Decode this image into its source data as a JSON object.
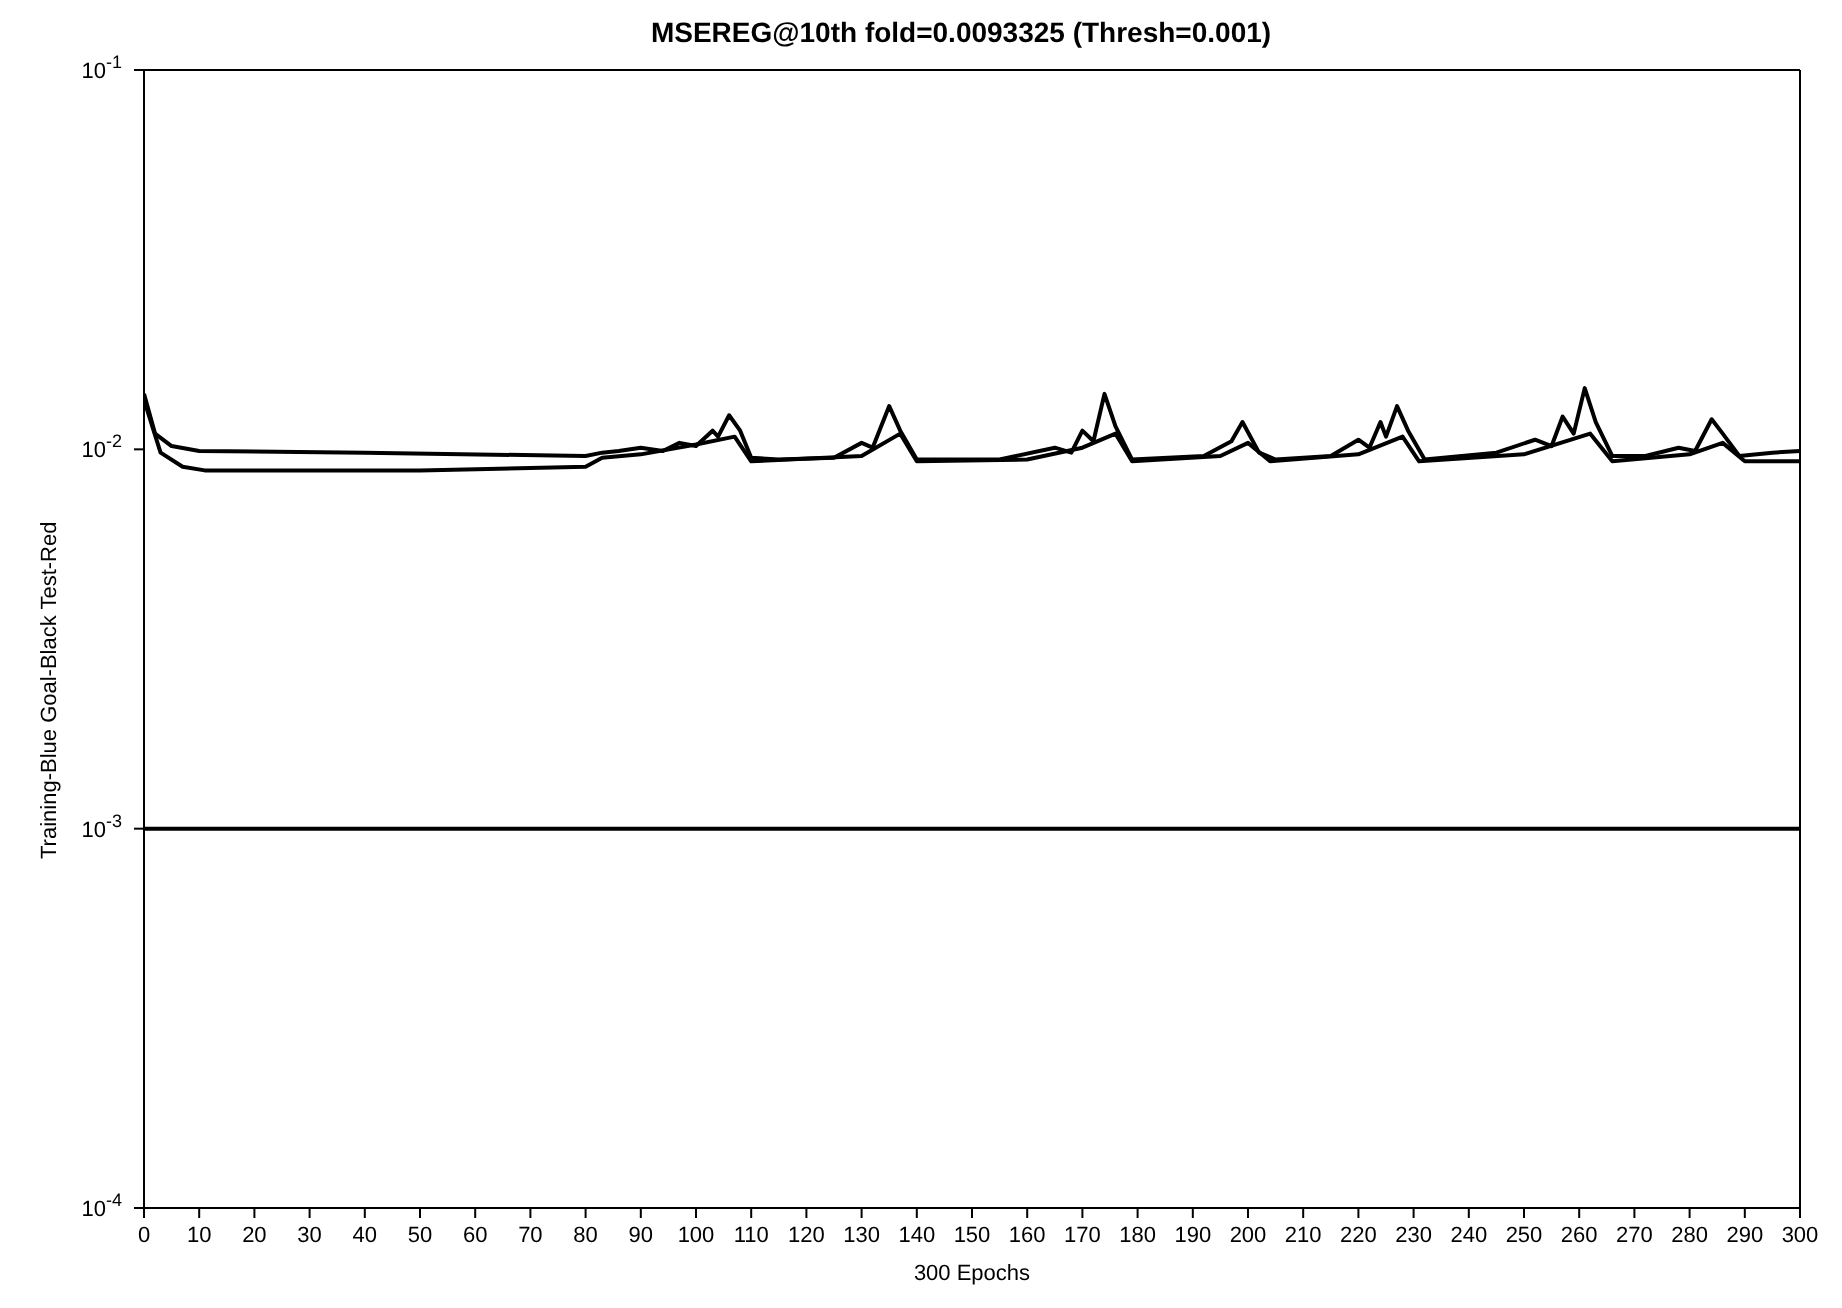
{
  "chart_data": {
    "type": "line",
    "title": "MSEREG@10th fold=0.0093325 (Thresh=0.001)",
    "xlabel": "300 Epochs",
    "ylabel": "Training-Blue  Goal-Black  Test-Red",
    "log": "y",
    "grid": false,
    "legend": false,
    "marker": "none",
    "line_style": "solid",
    "xlim": [
      0,
      300
    ],
    "xticks": [
      0,
      10,
      20,
      30,
      40,
      50,
      60,
      70,
      80,
      90,
      100,
      110,
      120,
      130,
      140,
      150,
      160,
      170,
      180,
      190,
      200,
      210,
      220,
      230,
      240,
      250,
      260,
      270,
      280,
      290,
      300
    ],
    "ylim": [
      0.0001,
      0.1
    ],
    "yticks": [
      {
        "value": 0.0001,
        "label": "10$^{-4}$"
      },
      {
        "value": 0.001,
        "label": "10$^{-3}$"
      },
      {
        "value": 0.01,
        "label": "10$^{-2}$"
      },
      {
        "value": 0.1,
        "label": "10$^{-1}$"
      }
    ],
    "series": [
      {
        "color": "#000000",
        "x": [
          0,
          2,
          5,
          10,
          40,
          80,
          83,
          86,
          90,
          94,
          97,
          100,
          103,
          104,
          106,
          108,
          110,
          115,
          125,
          130,
          132,
          135,
          137,
          140,
          155,
          165,
          168,
          170,
          172,
          174,
          176,
          179,
          192,
          197,
          199,
          202,
          205,
          215,
          220,
          222,
          224,
          225,
          227,
          229,
          232,
          245,
          252,
          255,
          257,
          259,
          261,
          263,
          266,
          272,
          278,
          281,
          284,
          286,
          289,
          295,
          300
        ],
        "values": [
          0.014,
          0.011,
          0.0102,
          0.0099,
          0.0098,
          0.0096,
          0.0098,
          0.0099,
          0.0101,
          0.0099,
          0.0104,
          0.0102,
          0.0112,
          0.0108,
          0.0123,
          0.0112,
          0.0095,
          0.0094,
          0.0095,
          0.0104,
          0.0101,
          0.013,
          0.0112,
          0.0094,
          0.0094,
          0.0101,
          0.0098,
          0.0112,
          0.0105,
          0.014,
          0.0115,
          0.0094,
          0.0096,
          0.0105,
          0.0118,
          0.0098,
          0.0094,
          0.0096,
          0.0106,
          0.0101,
          0.0118,
          0.0108,
          0.013,
          0.0112,
          0.0094,
          0.0098,
          0.0106,
          0.0102,
          0.0122,
          0.011,
          0.0145,
          0.0118,
          0.0096,
          0.0096,
          0.0101,
          0.0099,
          0.012,
          0.011,
          0.0096,
          0.0098,
          0.0099
        ]
      },
      {
        "color": "#000000",
        "x": [
          0,
          3,
          7,
          11,
          50,
          80,
          83,
          90,
          100,
          107,
          110,
          130,
          137,
          140,
          160,
          170,
          176,
          179,
          195,
          200,
          204,
          220,
          228,
          231,
          250,
          262,
          266,
          280,
          286,
          290,
          300
        ],
        "values": [
          0.0135,
          0.0098,
          0.009,
          0.0088,
          0.0088,
          0.009,
          0.0095,
          0.0097,
          0.0103,
          0.0108,
          0.0093,
          0.0096,
          0.011,
          0.0093,
          0.0094,
          0.0101,
          0.011,
          0.0093,
          0.0096,
          0.0104,
          0.0093,
          0.0097,
          0.0108,
          0.0093,
          0.0097,
          0.011,
          0.0093,
          0.0097,
          0.0104,
          0.0093,
          0.0093
        ]
      },
      {
        "color": "#000000",
        "x": [
          0,
          300
        ],
        "values": [
          0.001,
          0.001
        ]
      }
    ]
  }
}
